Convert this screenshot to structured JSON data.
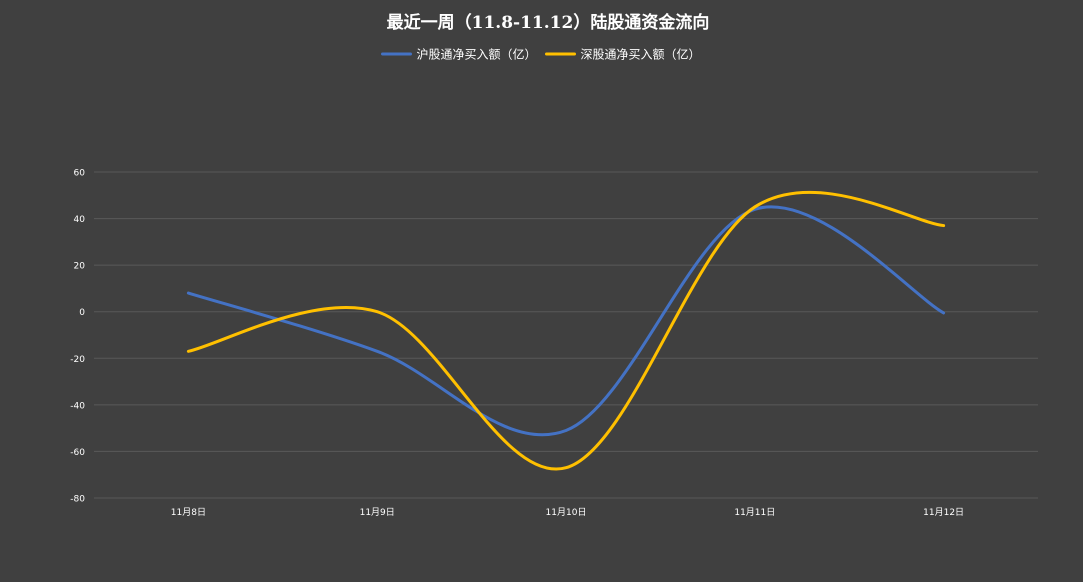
{
  "chart_data": {
    "type": "line",
    "title": "最近一周（11.8-11.12）陆股通资金流向",
    "categories": [
      "11月8日",
      "11月9日",
      "11月10日",
      "11月11日",
      "11月12日"
    ],
    "series": [
      {
        "name": "沪股通净买入额（亿）",
        "color": "#4472C4",
        "values": [
          8,
          -17,
          -51,
          44,
          -0.5
        ]
      },
      {
        "name": "深股通净买入额（亿）",
        "color": "#FFC000",
        "values": [
          -17,
          0,
          -67,
          45,
          37
        ]
      }
    ],
    "ylim": [
      -80,
      60
    ],
    "yticks": [
      -80,
      -60,
      -40,
      -20,
      0,
      20,
      40,
      60
    ],
    "xlabel": "",
    "ylabel": "",
    "grid": true,
    "smooth": true,
    "legend_position": "top-center",
    "colors": {
      "background": "#404040",
      "grid": "#595959",
      "text": "#FFFFFF",
      "title": "#FFFFFF"
    }
  }
}
